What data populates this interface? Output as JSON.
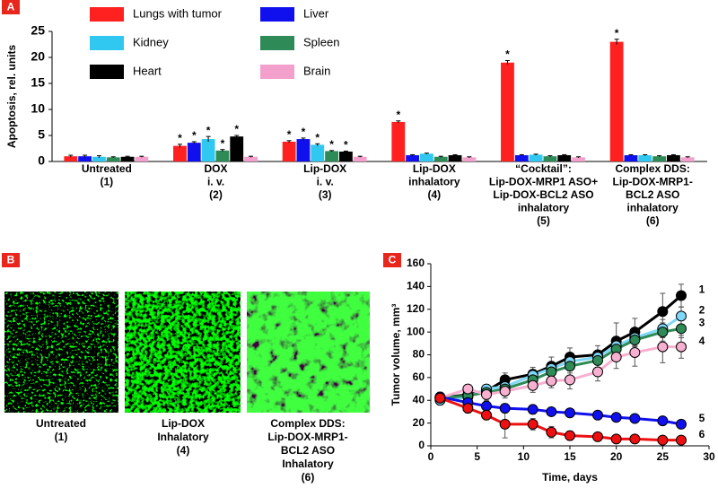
{
  "chart_data": [
    {
      "type": "bar",
      "panel_label": "A",
      "ylabel": "Apoptosis, rel. units",
      "categories": [
        [
          "Untreated",
          "(1)"
        ],
        [
          "DOX",
          "i. v.",
          "(2)"
        ],
        [
          "Lip-DOX",
          "i. v.",
          "(3)"
        ],
        [
          "Lip-DOX",
          "inhalatory",
          "(4)"
        ],
        [
          "“Cocktail”:",
          "Lip-DOX-MRP1 ASO+",
          "Lip-DOX-BCL2 ASO",
          "inhalatory",
          "(5)"
        ],
        [
          "Complex DDS:",
          "Lip-DOX-MRP1-",
          "BCL2 ASO",
          "inhalatory",
          "(6)"
        ]
      ],
      "series": [
        {
          "name": "Lungs with tumor",
          "color": "#ff2020",
          "values": [
            1.0,
            3.0,
            3.8,
            7.6,
            19.0,
            23.0
          ],
          "errors": [
            0.2,
            0.3,
            0.2,
            0.2,
            0.4,
            0.5
          ],
          "markers": [
            null,
            "*",
            "*",
            "*",
            "*",
            "*"
          ]
        },
        {
          "name": "Liver",
          "color": "#1010ee",
          "values": [
            1.0,
            3.6,
            4.3,
            1.2,
            1.2,
            1.2
          ],
          "errors": [
            0.2,
            0.2,
            0.2,
            0.1,
            0.1,
            0.1
          ],
          "markers": [
            null,
            "*",
            "*",
            null,
            null,
            null
          ]
        },
        {
          "name": "Kidney",
          "color": "#30c8f0",
          "values": [
            0.9,
            4.3,
            3.2,
            1.5,
            1.3,
            1.2
          ],
          "errors": [
            0.2,
            0.5,
            0.2,
            0.1,
            0.1,
            0.1
          ],
          "markers": [
            null,
            "*",
            "*",
            null,
            null,
            null
          ]
        },
        {
          "name": "Spleen",
          "color": "#2e8b57",
          "values": [
            0.8,
            2.1,
            2.0,
            0.9,
            1.0,
            1.0
          ],
          "errors": [
            0.1,
            0.2,
            0.1,
            0.1,
            0.1,
            0.1
          ],
          "markers": [
            null,
            "*",
            "*",
            null,
            null,
            null
          ]
        },
        {
          "name": "Heart",
          "color": "#000000",
          "values": [
            0.9,
            4.8,
            1.9,
            1.2,
            1.2,
            1.2
          ],
          "errors": [
            0.1,
            0.2,
            0.1,
            0.1,
            0.1,
            0.1
          ],
          "markers": [
            null,
            "*",
            "*",
            null,
            null,
            null
          ]
        },
        {
          "name": "Brain",
          "color": "#f4a0cc",
          "values": [
            0.9,
            0.9,
            0.9,
            0.8,
            0.8,
            0.8
          ],
          "errors": [
            0.1,
            0.1,
            0.1,
            0.1,
            0.1,
            0.1
          ],
          "markers": [
            null,
            null,
            null,
            null,
            null,
            null
          ]
        }
      ],
      "ylim": [
        0,
        25
      ],
      "yticks": [
        0,
        5,
        10,
        15,
        20,
        25
      ]
    },
    {
      "type": "line",
      "panel_label": "C",
      "xlabel": "Time, days",
      "ylabel": "Tumor volume, mm³",
      "x": [
        1,
        4,
        6,
        8,
        11,
        13,
        15,
        18,
        20,
        22,
        25,
        27
      ],
      "series": [
        {
          "name": "1",
          "color": "#000000",
          "values": [
            42,
            45,
            48,
            58,
            63,
            70,
            78,
            80,
            92,
            100,
            118,
            132
          ],
          "errors": [
            5,
            4,
            5,
            6,
            6,
            8,
            8,
            8,
            16,
            12,
            16,
            10
          ]
        },
        {
          "name": "2",
          "color": "#80d8f8",
          "values": [
            40,
            43,
            50,
            52,
            62,
            68,
            74,
            78,
            88,
            95,
            103,
            114
          ],
          "errors": [
            4,
            4,
            4,
            5,
            5,
            6,
            6,
            6,
            8,
            8,
            8,
            8
          ]
        },
        {
          "name": "3",
          "color": "#2e8b57",
          "values": [
            42,
            44,
            47,
            50,
            58,
            65,
            70,
            75,
            85,
            93,
            100,
            103
          ],
          "errors": [
            4,
            4,
            4,
            5,
            5,
            6,
            6,
            6,
            8,
            8,
            8,
            8
          ]
        },
        {
          "name": "4",
          "color": "#f8b0d0",
          "values": [
            42,
            50,
            45,
            48,
            53,
            57,
            58,
            65,
            78,
            82,
            87,
            87
          ],
          "errors": [
            4,
            4,
            5,
            6,
            6,
            6,
            8,
            8,
            10,
            12,
            14,
            10
          ]
        },
        {
          "name": "5",
          "color": "#1010ee",
          "values": [
            43,
            38,
            35,
            33,
            32,
            30,
            29,
            27,
            25,
            24,
            22,
            19
          ],
          "errors": [
            4,
            4,
            4,
            4,
            4,
            3,
            3,
            3,
            3,
            3,
            3,
            3
          ]
        },
        {
          "name": "6",
          "color": "#ee1010",
          "values": [
            42,
            33,
            27,
            19,
            19,
            12,
            9,
            8,
            6,
            6,
            5,
            5
          ],
          "errors": [
            4,
            4,
            4,
            12,
            5,
            5,
            4,
            3,
            3,
            3,
            3,
            3
          ]
        }
      ],
      "xlim": [
        0,
        30
      ],
      "xticks": [
        0,
        5,
        10,
        15,
        20,
        25,
        30
      ],
      "ylim": [
        0,
        160
      ],
      "yticks": [
        0,
        20,
        40,
        60,
        80,
        100,
        120,
        140,
        160
      ]
    }
  ],
  "images_panel": {
    "panel_label": "B",
    "captions": [
      [
        "Untreated",
        "(1)"
      ],
      [
        "Lip-DOX",
        "Inhalatory",
        "(4)"
      ],
      [
        "Complex DDS:",
        "Lip-DOX-MRP1-",
        "BCL2 ASO",
        "Inhalatory",
        "(6)"
      ]
    ]
  }
}
